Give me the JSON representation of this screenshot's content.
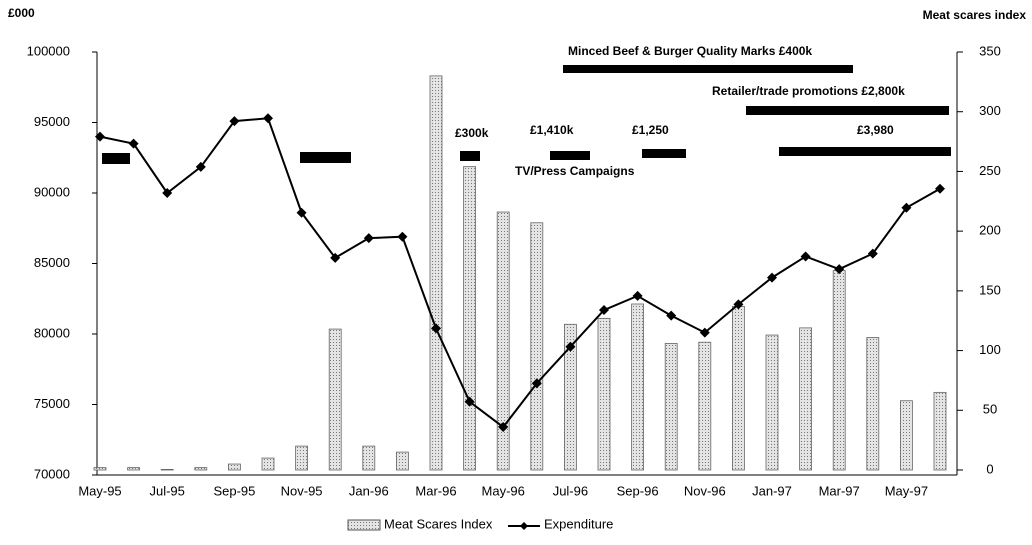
{
  "chart_data": {
    "type": "bar-line",
    "y_label": "£000",
    "y2_label": "Meat scares index",
    "categories": [
      "May-95",
      null,
      "Jul-95",
      null,
      "Sep-95",
      null,
      "Nov-95",
      null,
      "Jan-96",
      null,
      "Mar-96",
      null,
      "May-96",
      null,
      "Jul-96",
      null,
      "Sep-96",
      null,
      "Nov-96",
      null,
      "Jan-97",
      null,
      "Mar-97",
      null,
      "May-97",
      null
    ],
    "series": [
      {
        "name": "Meat Scares Index",
        "type": "bar",
        "axis": "y2",
        "color": "#c8c8c8",
        "values": [
          2,
          2,
          0.5,
          2,
          5,
          10,
          20,
          118,
          20,
          15,
          330,
          254,
          216,
          207,
          122,
          127,
          139,
          106,
          107,
          137,
          113,
          119,
          167,
          111,
          58,
          65
        ]
      },
      {
        "name": "Expenditure",
        "type": "line",
        "axis": "y",
        "color": "#000000",
        "values": [
          94000,
          93500,
          90000,
          91850,
          95100,
          95300,
          88600,
          85400,
          86800,
          86900,
          80400,
          75200,
          73400,
          76500,
          79100,
          81700,
          82700,
          81300,
          80100,
          82100,
          84000,
          85500,
          84600,
          85700,
          88950,
          90300
        ]
      }
    ],
    "ylim": [
      70000,
      100000
    ],
    "yticks": [
      70000,
      75000,
      80000,
      85000,
      90000,
      95000,
      100000
    ],
    "y2lim": [
      0,
      350
    ],
    "y2ticks": [
      0,
      50,
      100,
      150,
      200,
      250,
      300,
      350
    ],
    "annotations": [
      "Minced Beef & Burger Quality Marks £400k",
      "Retailer/trade promotions £2,800k",
      "£300k",
      "£1,410k",
      "£1,250",
      "£3,980",
      "TV/Press Campaigns"
    ]
  }
}
